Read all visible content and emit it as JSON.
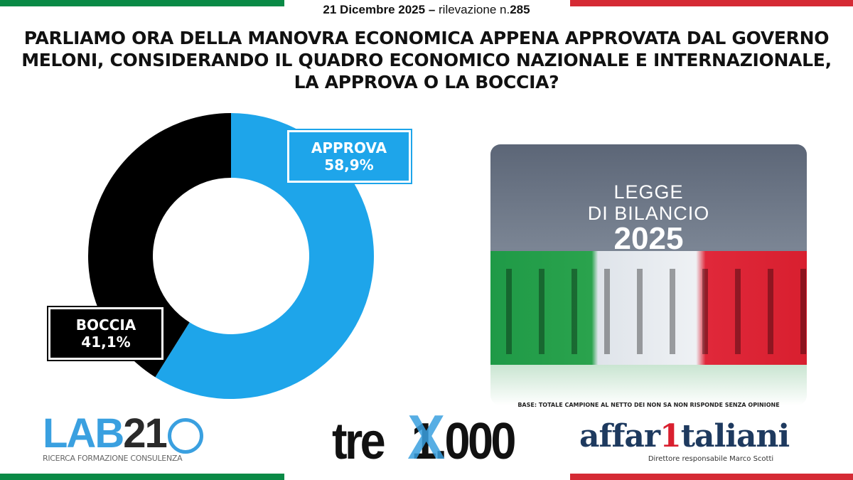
{
  "header": {
    "date": "21 Dicembre 2025",
    "separator": "–",
    "survey_label": "rilevazione n.",
    "survey_number": "285"
  },
  "title": "PARLIAMO ORA DELLA MANOVRA ECONOMICA APPENA APPROVATA DAL GOVERNO MELONI, CONSIDERANDO IL QUADRO ECONOMICO NAZIONALE E INTERNAZIONALE, LA APPROVA O LA BOCCIA?",
  "chart_data": {
    "type": "pie",
    "variant": "donut",
    "categories": [
      "APPROVA",
      "BOCCIA"
    ],
    "values": [
      58.9,
      41.1
    ],
    "data_labels": [
      "58,9%",
      "41,1%"
    ],
    "colors": [
      "#1ea5ea",
      "#000000"
    ]
  },
  "image": {
    "line1": "LEGGE",
    "line2": "DI BILANCIO",
    "year": "2025"
  },
  "footnote": "BASE: TOTALE CAMPIONE AL NETTO DEI NON SA NON RISPONDE SENZA OPINIONE",
  "logos": {
    "lab21": {
      "name": "LAB21",
      "tagline": "RICERCA FORMAZIONE CONSULENZA"
    },
    "trex": {
      "name": "treX1.000"
    },
    "affari": {
      "name": "affaritaliani",
      "tagline": "Direttore responsabile Marco Scotti"
    }
  },
  "colors": {
    "green": "#0a8a46",
    "red": "#d52b35",
    "blue": "#1ea5ea"
  }
}
